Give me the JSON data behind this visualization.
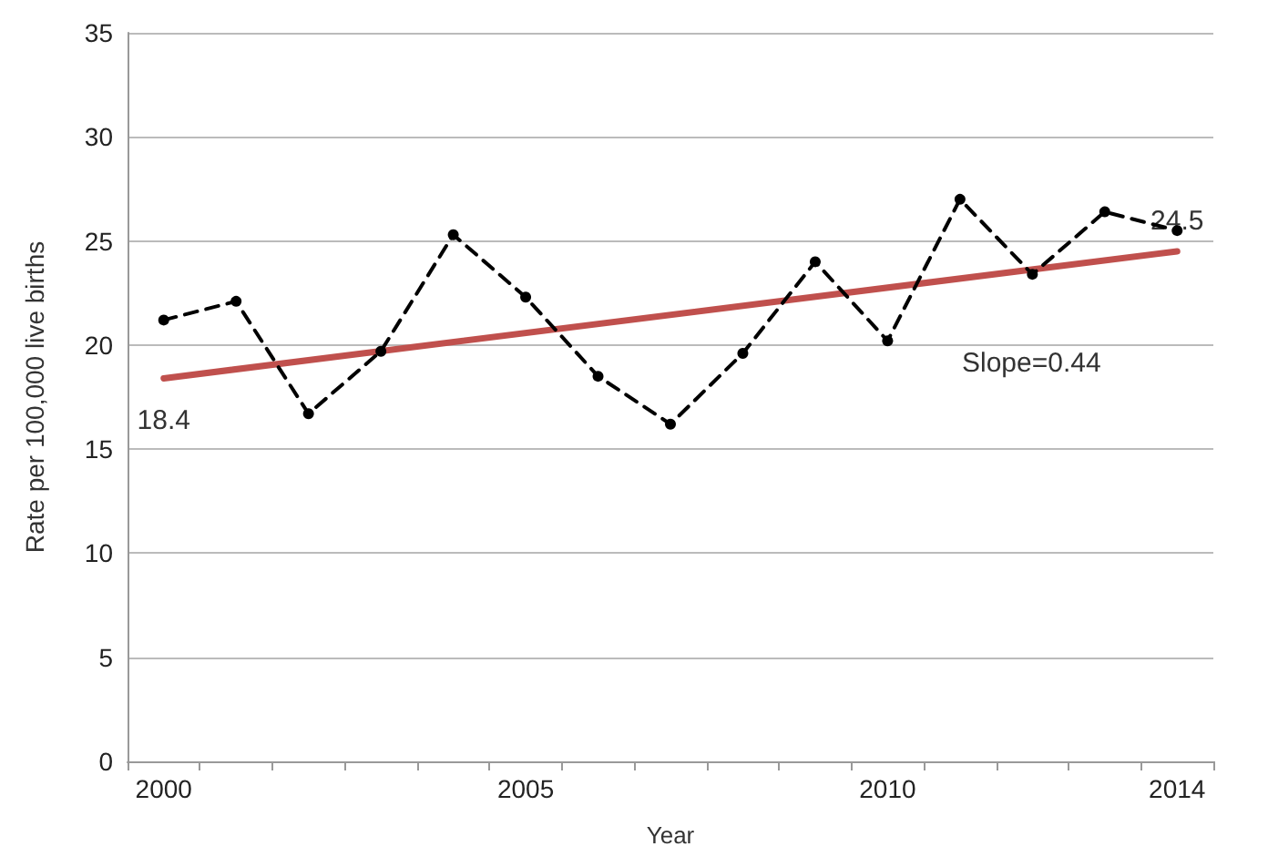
{
  "chart_data": {
    "type": "line",
    "xlabel": "Year",
    "ylabel": "Rate per 100,000 live births",
    "categories": [
      "2000",
      null,
      null,
      null,
      null,
      "2005",
      null,
      null,
      null,
      null,
      "2010",
      null,
      null,
      null,
      "2014"
    ],
    "series": [
      {
        "color": "#000000",
        "values": [
          21.2,
          22.1,
          16.7,
          19.7,
          25.3,
          22.3,
          18.5,
          16.2,
          19.6,
          24.0,
          20.2,
          27.0,
          23.4,
          26.4,
          25.5
        ],
        "marker": "circle",
        "line_style": "dashed"
      },
      {
        "color": "#c0504d",
        "values": [
          18.4,
          null,
          null,
          null,
          null,
          null,
          null,
          null,
          null,
          null,
          null,
          null,
          null,
          null,
          24.5
        ],
        "value_labels": [
          "18.4",
          null,
          null,
          null,
          null,
          null,
          null,
          null,
          null,
          null,
          null,
          null,
          null,
          null,
          "24.5"
        ],
        "marker": "none",
        "line_style": "solid"
      }
    ],
    "annotations": [
      "Slope=0.44"
    ],
    "ylim": [
      0,
      35
    ],
    "yticks": [
      0,
      5,
      10,
      15,
      20,
      25,
      30,
      35
    ],
    "grid": "y"
  }
}
